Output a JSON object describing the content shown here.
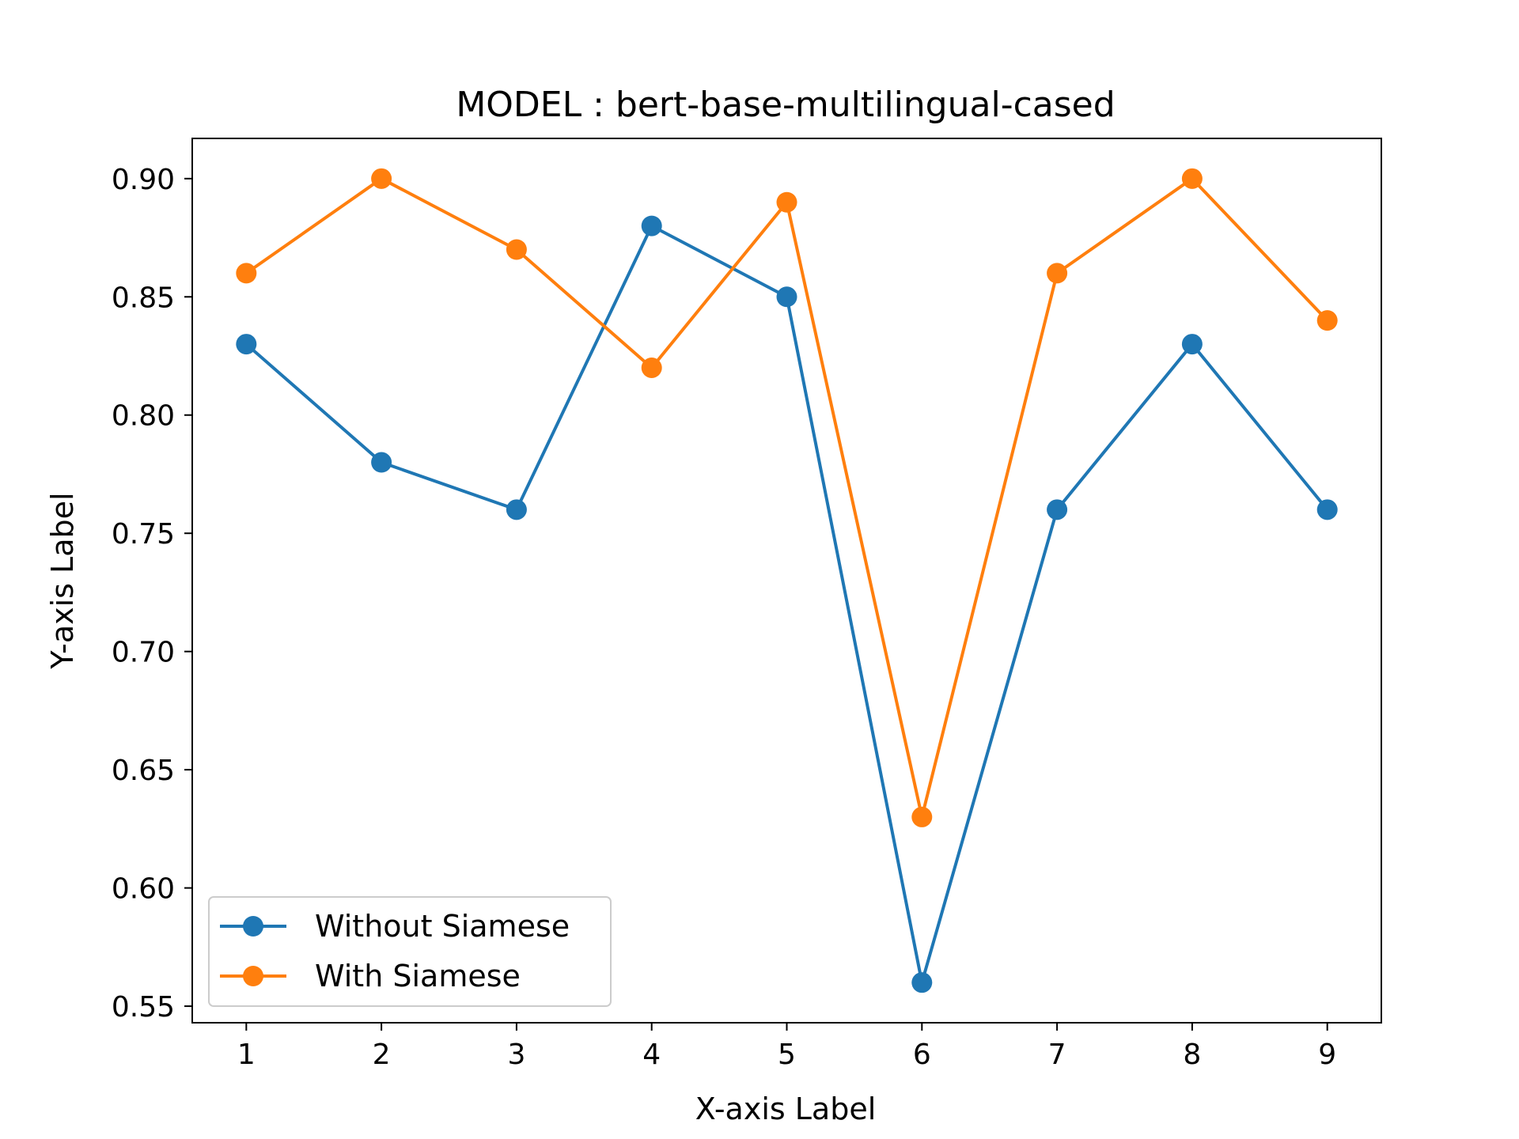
{
  "chart_data": {
    "type": "line",
    "title": "MODEL : bert-base-multilingual-cased",
    "xlabel": "X-axis Label",
    "ylabel": "Y-axis Label",
    "x": [
      1,
      2,
      3,
      4,
      5,
      6,
      7,
      8,
      9
    ],
    "x_ticks": [
      "1",
      "2",
      "3",
      "4",
      "5",
      "6",
      "7",
      "8",
      "9"
    ],
    "y_ticks": [
      "0.55",
      "0.60",
      "0.65",
      "0.70",
      "0.75",
      "0.80",
      "0.85",
      "0.90"
    ],
    "y_tick_values": [
      0.55,
      0.6,
      0.65,
      0.7,
      0.75,
      0.8,
      0.85,
      0.9
    ],
    "xlim": [
      0.6,
      9.4
    ],
    "ylim": [
      0.543,
      0.917
    ],
    "grid": false,
    "legend_position": "lower-left",
    "series": [
      {
        "name": "Without Siamese",
        "color": "#1f77b4",
        "values": [
          0.83,
          0.78,
          0.76,
          0.88,
          0.85,
          0.56,
          0.76,
          0.83,
          0.76
        ]
      },
      {
        "name": "With Siamese",
        "color": "#ff7f0e",
        "values": [
          0.86,
          0.9,
          0.87,
          0.82,
          0.89,
          0.63,
          0.86,
          0.9,
          0.84
        ]
      }
    ]
  }
}
